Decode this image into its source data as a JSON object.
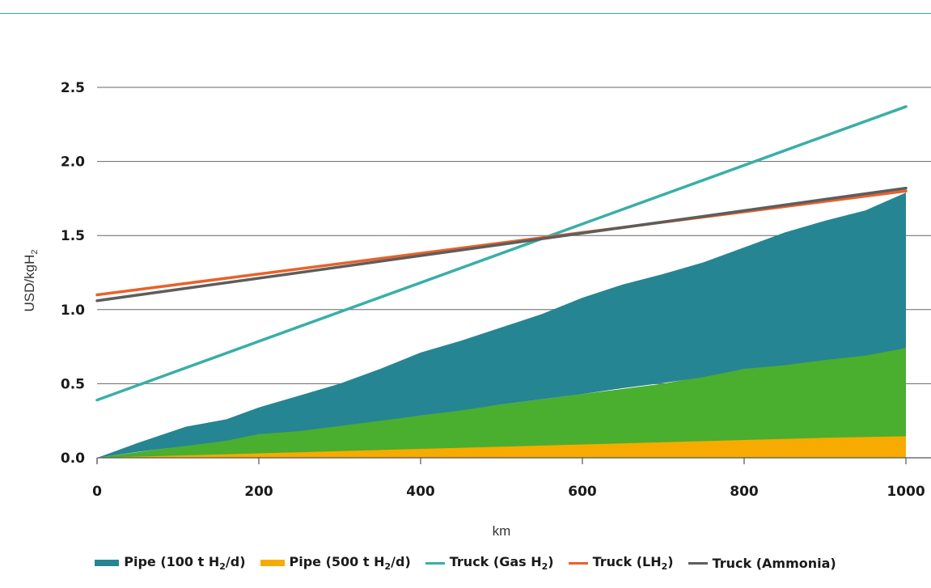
{
  "chart_data": {
    "type": "area",
    "xlabel": "km",
    "ylabel": "USD/kgH",
    "ylabel_sub": "2",
    "xlim": [
      0,
      1000
    ],
    "ylim": [
      0,
      2.5
    ],
    "x_ticks": [
      "0",
      "200",
      "400",
      "600",
      "800",
      "1000"
    ],
    "y_ticks": [
      "0.0",
      "0.5",
      "1.0",
      "1.5",
      "2.0",
      "2.5"
    ],
    "grid": "horizontal",
    "legend_position": "bottom",
    "area_bands": [
      {
        "color": "#f7ab00",
        "x": [
          0,
          100,
          200,
          300,
          400,
          500,
          600,
          700,
          800,
          900,
          1000
        ],
        "lower": [
          0,
          0,
          0,
          0,
          0,
          0,
          0,
          0,
          0,
          0,
          0
        ],
        "upper": [
          0,
          0.03,
          0.075,
          0.115,
          0.155,
          0.19,
          0.23,
          0.265,
          0.305,
          0.345,
          0.39
        ]
      },
      {
        "color": "#4aae2e",
        "x": [
          0,
          100,
          200,
          300,
          400,
          500,
          600,
          700,
          800,
          900,
          1000
        ],
        "lower": [
          0,
          0.015,
          0.03,
          0.045,
          0.06,
          0.075,
          0.09,
          0.105,
          0.12,
          0.135,
          0.145
        ],
        "upper": [
          0,
          0.075,
          0.16,
          0.22,
          0.285,
          0.36,
          0.43,
          0.5,
          0.6,
          0.67,
          0.74
        ]
      },
      {
        "color": "#268592",
        "x": [
          0,
          50,
          110,
          160,
          200,
          250,
          300,
          350,
          400,
          450,
          500,
          550,
          600,
          650,
          700,
          750,
          800,
          850,
          900,
          950,
          1000
        ],
        "lower": [
          0,
          0.04,
          0.08,
          0.115,
          0.16,
          0.18,
          0.215,
          0.25,
          0.285,
          0.32,
          0.36,
          0.395,
          0.43,
          0.47,
          0.505,
          0.545,
          0.6,
          0.625,
          0.66,
          0.69,
          0.74
        ],
        "upper": [
          0,
          0.1,
          0.21,
          0.26,
          0.34,
          0.42,
          0.5,
          0.6,
          0.71,
          0.79,
          0.88,
          0.97,
          1.08,
          1.17,
          1.24,
          1.32,
          1.42,
          1.52,
          1.6,
          1.67,
          1.79
        ]
      }
    ],
    "lines": [
      {
        "color": "#3aaea8",
        "x": [
          0,
          1000
        ],
        "y": [
          0.39,
          2.37
        ]
      },
      {
        "color": "#e8622a",
        "x": [
          0,
          1000
        ],
        "y": [
          1.1,
          1.8
        ]
      },
      {
        "color": "#5d5d5d",
        "x": [
          0,
          1000
        ],
        "y": [
          1.06,
          1.82
        ]
      }
    ],
    "legend": [
      {
        "kind": "area",
        "color": "#268592",
        "parts": [
          "Pipe (100 t H",
          "2",
          "/d)"
        ]
      },
      {
        "kind": "area",
        "color": "#f7ab00",
        "parts": [
          "Pipe (500 t H",
          "2",
          "/d)"
        ]
      },
      {
        "kind": "line",
        "color": "#3aaea8",
        "parts": [
          "Truck (Gas H",
          "2",
          ")"
        ]
      },
      {
        "kind": "line",
        "color": "#e8622a",
        "parts": [
          "Truck (LH",
          "2",
          ")"
        ]
      },
      {
        "kind": "line",
        "color": "#5d5d5d",
        "parts": [
          "Truck (Ammonia)",
          "",
          ""
        ]
      }
    ]
  }
}
